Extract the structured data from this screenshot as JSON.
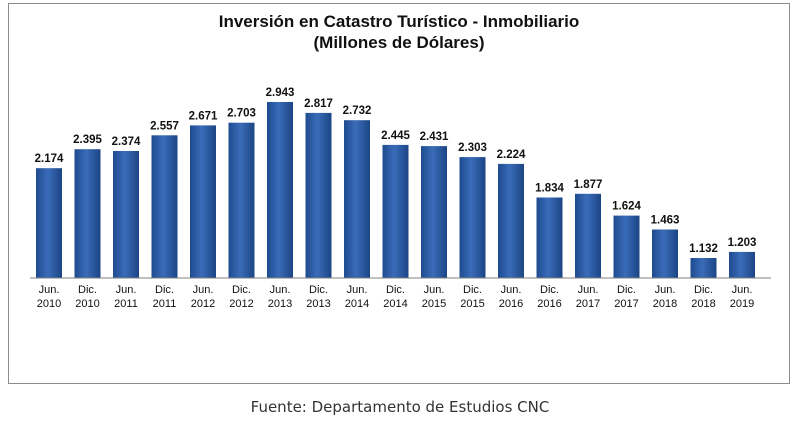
{
  "chart_data": {
    "type": "bar",
    "title": "Inversión en Catastro Turístico - Inmobiliario",
    "subtitle": "(Millones de Dólares)",
    "categories": [
      [
        "Jun.",
        "2010"
      ],
      [
        "Dic.",
        "2010"
      ],
      [
        "Jun.",
        "2011"
      ],
      [
        "Dic.",
        "2011"
      ],
      [
        "Jun.",
        "2012"
      ],
      [
        "Dic.",
        "2012"
      ],
      [
        "Jun.",
        "2013"
      ],
      [
        "Dic.",
        "2013"
      ],
      [
        "Jun.",
        "2014"
      ],
      [
        "Dic.",
        "2014"
      ],
      [
        "Jun.",
        "2015"
      ],
      [
        "Dic.",
        "2015"
      ],
      [
        "Jun.",
        "2016"
      ],
      [
        "Dic.",
        "2016"
      ],
      [
        "Jun.",
        "2017"
      ],
      [
        "Dic.",
        "2017"
      ],
      [
        "Jun.",
        "2018"
      ],
      [
        "Dic.",
        "2018"
      ],
      [
        "Jun.",
        "2019"
      ]
    ],
    "values": [
      2174,
      2395,
      2374,
      2557,
      2671,
      2703,
      2943,
      2817,
      2732,
      2445,
      2431,
      2303,
      2224,
      1834,
      1877,
      1624,
      1463,
      1132,
      1203
    ],
    "value_labels": [
      "2.174",
      "2.395",
      "2.374",
      "2.557",
      "2.671",
      "2.703",
      "2.943",
      "2.817",
      "2.732",
      "2.445",
      "2.431",
      "2.303",
      "2.224",
      "1.834",
      "1.877",
      "1.624",
      "1.463",
      "1.132",
      "1.203"
    ],
    "ylim": [
      900,
      2943
    ],
    "bar_color": "#2f5fa8",
    "grid": false,
    "legend": "none"
  },
  "caption": "Fuente: Departamento de Estudios CNC"
}
